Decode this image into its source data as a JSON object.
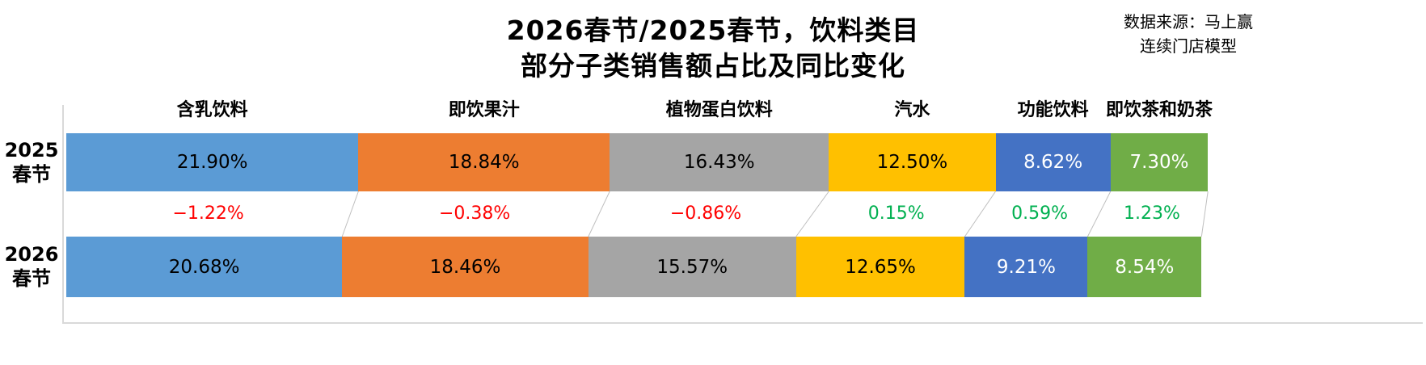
{
  "chart_data": {
    "type": "bar",
    "subtype": "horizontal-stacked-comparison",
    "title_line1": "2026春节/2025春节，饮料类目",
    "title_line2": "部分子类销售额占比及同比变化",
    "source_line1": "数据来源：马上赢",
    "source_line2": "连续门店模型",
    "unit": "%",
    "xlim": [
      0,
      100
    ],
    "categories": [
      "含乳饮料",
      "即饮果汁",
      "植物蛋白饮料",
      "汽水",
      "功能饮料",
      "即饮茶和奶茶"
    ],
    "colors": [
      "#5B9BD5",
      "#ED7D31",
      "#A5A5A5",
      "#FFC000",
      "#4472C4",
      "#70AD47"
    ],
    "label_colors": [
      "#000000",
      "#000000",
      "#000000",
      "#000000",
      "#FFFFFF",
      "#FFFFFF"
    ],
    "series": [
      {
        "name": "2025春节",
        "name_line1": "2025",
        "name_line2": "春节",
        "values": [
          21.9,
          18.84,
          16.43,
          12.5,
          8.62,
          7.3
        ],
        "labels": [
          "21.90%",
          "18.84%",
          "16.43%",
          "12.50%",
          "8.62%",
          "7.30%"
        ]
      },
      {
        "name": "2026春节",
        "name_line1": "2026",
        "name_line2": "春节",
        "values": [
          20.68,
          18.46,
          15.57,
          12.65,
          9.21,
          8.54
        ],
        "labels": [
          "20.68%",
          "18.46%",
          "15.57%",
          "12.65%",
          "9.21%",
          "8.54%"
        ]
      }
    ],
    "changes": {
      "values": [
        -1.22,
        -0.38,
        -0.86,
        0.15,
        0.59,
        1.23
      ],
      "labels": [
        "−1.22%",
        "−0.38%",
        "−0.86%",
        "0.15%",
        "0.59%",
        "1.23%"
      ],
      "negative_color": "#FF0000",
      "positive_color": "#00B050"
    },
    "axis_color": "#D9D9D9",
    "connector_color": "#BFBFBF"
  }
}
